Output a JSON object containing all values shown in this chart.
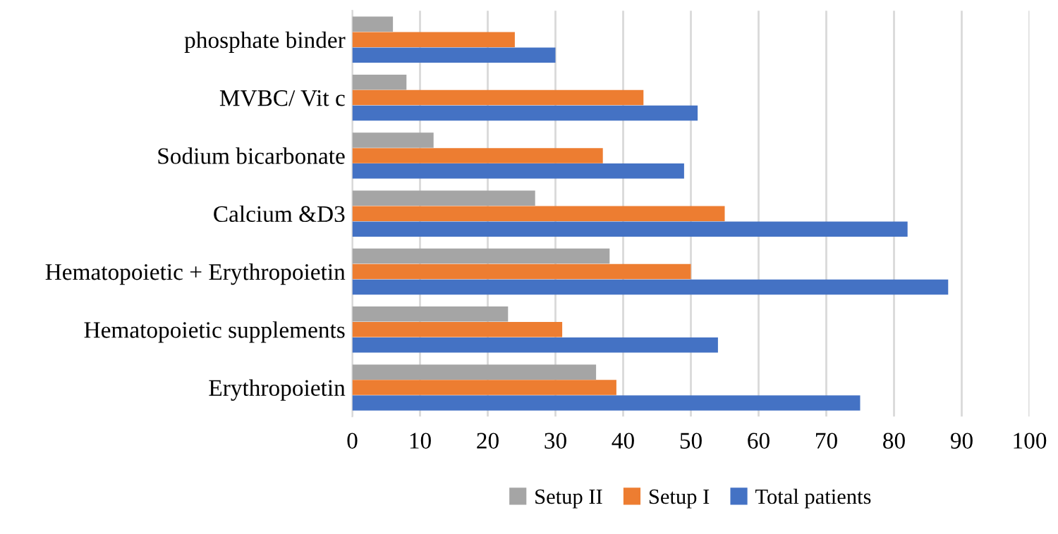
{
  "chart_data": {
    "type": "bar",
    "orientation": "horizontal",
    "categories": [
      "phosphate binder",
      "MVBC/ Vit c",
      "Sodium bicarbonate",
      "Calcium &D3",
      "Hematopoietic + Erythropoietin",
      "Hematopoietic supplements",
      "Erythropoietin"
    ],
    "series": [
      {
        "name": "Setup II",
        "color": "#a5a5a5",
        "values": [
          6,
          8,
          12,
          27,
          38,
          23,
          36
        ]
      },
      {
        "name": "Setup I",
        "color": "#ed7d31",
        "values": [
          24,
          43,
          37,
          55,
          50,
          31,
          39
        ]
      },
      {
        "name": "Total patients",
        "color": "#4472c4",
        "values": [
          30,
          51,
          49,
          82,
          88,
          54,
          75
        ]
      }
    ],
    "xlim": [
      0,
      100
    ],
    "xticks": [
      0,
      10,
      20,
      30,
      40,
      50,
      60,
      70,
      80,
      90,
      100
    ],
    "grid": "x",
    "legend": "bottom"
  }
}
